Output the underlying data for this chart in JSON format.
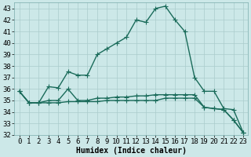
{
  "xlabel": "Humidex (Indice chaleur)",
  "ylabel": "",
  "background_color": "#cce8e8",
  "grid_color": "#aacccc",
  "line_color": "#1a6b5a",
  "xlim": [
    -0.5,
    23.5
  ],
  "ylim": [
    32,
    43.5
  ],
  "yticks": [
    32,
    33,
    34,
    35,
    36,
    37,
    38,
    39,
    40,
    41,
    42,
    43
  ],
  "xticks": [
    0,
    1,
    2,
    3,
    4,
    5,
    6,
    7,
    8,
    9,
    10,
    11,
    12,
    13,
    14,
    15,
    16,
    17,
    18,
    19,
    20,
    21,
    22,
    23
  ],
  "series": [
    [
      35.8,
      34.8,
      34.8,
      36.2,
      36.1,
      37.5,
      37.2,
      37.2,
      39.0,
      39.5,
      40.0,
      40.5,
      42.0,
      41.8,
      43.0,
      43.2,
      42.0,
      41.0,
      37.0,
      35.8,
      35.8,
      34.3,
      34.2,
      32.2
    ],
    [
      35.8,
      34.8,
      34.8,
      35.0,
      35.0,
      36.0,
      35.0,
      35.0,
      35.2,
      35.2,
      35.3,
      35.3,
      35.4,
      35.4,
      35.5,
      35.5,
      35.5,
      35.5,
      35.5,
      34.4,
      34.3,
      34.2,
      33.3,
      32.2
    ],
    [
      35.8,
      34.8,
      34.8,
      34.8,
      34.8,
      34.9,
      34.9,
      34.9,
      34.9,
      35.0,
      35.0,
      35.0,
      35.0,
      35.0,
      35.0,
      35.2,
      35.2,
      35.2,
      35.2,
      34.4,
      34.3,
      34.2,
      33.3,
      32.2
    ]
  ],
  "marker": "+",
  "markersize": 4,
  "linewidth": 1.0,
  "fontsize_label": 7,
  "fontsize_tick": 6.5
}
